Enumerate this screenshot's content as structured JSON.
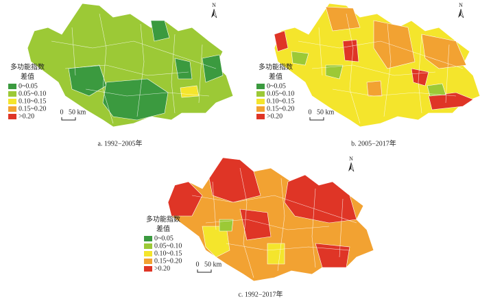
{
  "legend": {
    "title_lines": [
      "多功能指数",
      "差值"
    ],
    "items": [
      {
        "label": "0~0.05",
        "color": "#3b9a3f"
      },
      {
        "label": "0.05~0.10",
        "color": "#9cc936"
      },
      {
        "label": "0.10~0.15",
        "color": "#f4e52c"
      },
      {
        "label": "0.15~0.20",
        "color": "#f2a232"
      },
      {
        "label": ">0.20",
        "color": "#df3526"
      }
    ]
  },
  "scale": {
    "zero": "0",
    "length": "50 km"
  },
  "north": "N",
  "captions": [
    "a.  1992−2005年",
    "b.  2005−2017年",
    "c.  1992−2017年"
  ]
}
